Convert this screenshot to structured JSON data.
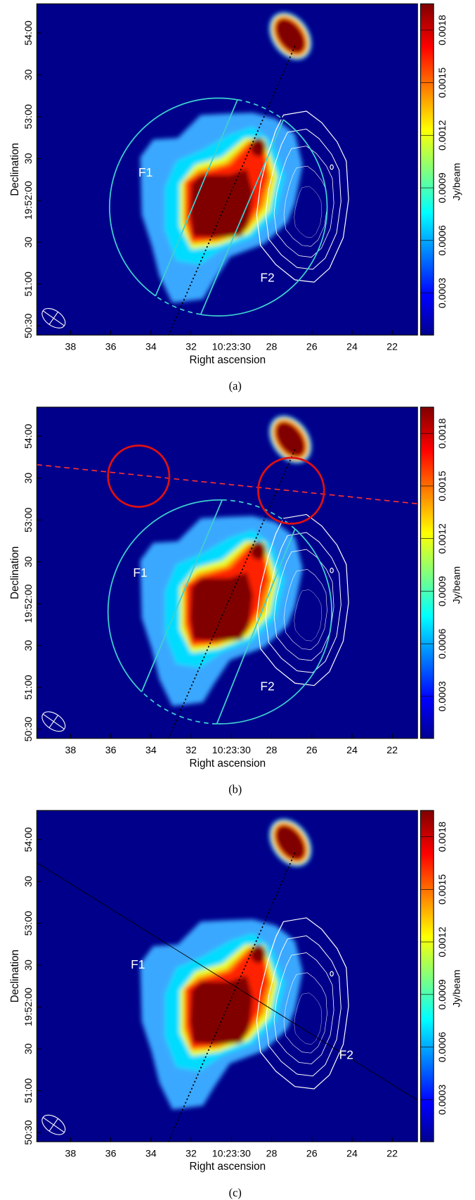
{
  "panels": [
    {
      "caption": "(a)",
      "x_label": "Right ascension",
      "y_label": "Declination",
      "colorbar_label": "Jy/beam",
      "xlim": [
        39.68,
        20.74
      ],
      "xticks": [
        38,
        36,
        34,
        32,
        {
          "value": 30,
          "label": "10:23:30"
        },
        28,
        26,
        24,
        22
      ],
      "ylim": [
        23.4,
        260.9
      ],
      "yticks": [
        {
          "value": 240,
          "label": "54:00"
        },
        {
          "value": 210,
          "label": "30"
        },
        {
          "value": 180,
          "label": "53:00"
        },
        {
          "value": 150,
          "label": "30"
        },
        {
          "value": 120,
          "label": "19:52:00"
        },
        {
          "value": 90,
          "label": "30"
        },
        {
          "value": 60,
          "label": "51:00"
        },
        {
          "value": 30,
          "label": "50:30"
        }
      ],
      "clim": [
        6e-05,
        0.00195
      ],
      "cticks": [
        0.0003,
        0.0006,
        0.0009,
        0.0012,
        0.0015,
        0.0018
      ],
      "regions": [
        "F1",
        "F2"
      ]
    },
    {
      "caption": "(b)",
      "x_label": "Right ascension",
      "y_label": "Declination",
      "colorbar_label": "Jy/beam",
      "xlim": [
        39.68,
        20.74
      ],
      "xticks": [
        38,
        36,
        34,
        32,
        {
          "value": 30,
          "label": "10:23:30"
        },
        28,
        26,
        24,
        22
      ],
      "ylim": [
        23.4,
        260.9
      ],
      "yticks": [
        {
          "value": 240,
          "label": "54:00"
        },
        {
          "value": 210,
          "label": "30"
        },
        {
          "value": 180,
          "label": "53:00"
        },
        {
          "value": 150,
          "label": "30"
        },
        {
          "value": 120,
          "label": "19:52:00"
        },
        {
          "value": 90,
          "label": "30"
        },
        {
          "value": 60,
          "label": "51:00"
        },
        {
          "value": 30,
          "label": "50:30"
        }
      ],
      "clim": [
        6e-05,
        0.00195
      ],
      "cticks": [
        0.0003,
        0.0006,
        0.0009,
        0.0012,
        0.0015,
        0.0018
      ],
      "regions": [
        "F1",
        "F2"
      ]
    },
    {
      "caption": "(c)",
      "x_label": "Right ascension",
      "y_label": "Declination",
      "colorbar_label": "Jy/beam",
      "xlim": [
        39.68,
        20.74
      ],
      "xticks": [
        38,
        36,
        34,
        32,
        {
          "value": 30,
          "label": "10:23:30"
        },
        28,
        26,
        24,
        22
      ],
      "ylim": [
        23.4,
        260.9
      ],
      "yticks": [
        {
          "value": 240,
          "label": "54:00"
        },
        {
          "value": 210,
          "label": "30"
        },
        {
          "value": 180,
          "label": "53:00"
        },
        {
          "value": 150,
          "label": "30"
        },
        {
          "value": 120,
          "label": "19:52:00"
        },
        {
          "value": 90,
          "label": "30"
        },
        {
          "value": 60,
          "label": "51:00"
        },
        {
          "value": 30,
          "label": "50:30"
        }
      ],
      "clim": [
        6e-05,
        0.00195
      ],
      "cticks": [
        0.0003,
        0.0006,
        0.0009,
        0.0012,
        0.0015,
        0.0018
      ],
      "regions": [
        "F1",
        "F2"
      ]
    }
  ]
}
